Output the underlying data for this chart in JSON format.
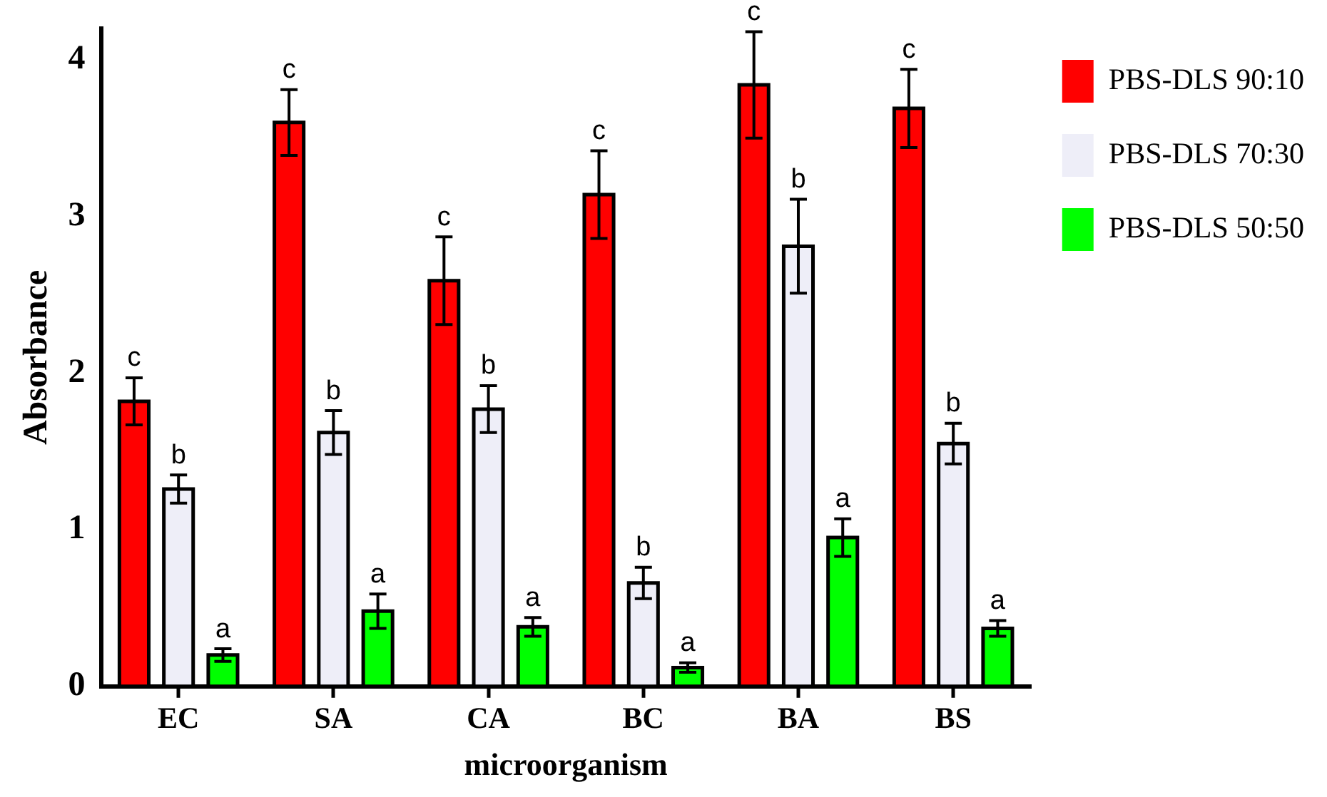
{
  "chart_data": {
    "type": "bar",
    "xlabel": "microorganism",
    "ylabel": "Absorbance",
    "categories": [
      "EC",
      "SA",
      "CA",
      "BC",
      "BA",
      "BS"
    ],
    "series": [
      {
        "name": "PBS-DLS 90:10",
        "color": "#ff0000",
        "values": [
          1.82,
          3.6,
          2.59,
          3.14,
          3.84,
          3.69
        ],
        "errors": [
          0.15,
          0.21,
          0.28,
          0.28,
          0.34,
          0.25
        ],
        "value_labels": [
          "c",
          "c",
          "c",
          "c",
          "c",
          "c"
        ]
      },
      {
        "name": "PBS-DLS 70:30",
        "color": "#eeeef8",
        "values": [
          1.26,
          1.62,
          1.77,
          0.66,
          2.81,
          1.55
        ],
        "errors": [
          0.09,
          0.14,
          0.15,
          0.1,
          0.3,
          0.13
        ],
        "value_labels": [
          "b",
          "b",
          "b",
          "b",
          "b",
          "b"
        ]
      },
      {
        "name": "PBS-DLS 50:50",
        "color": "#00ff00",
        "values": [
          0.2,
          0.48,
          0.38,
          0.12,
          0.95,
          0.37
        ],
        "errors": [
          0.04,
          0.11,
          0.06,
          0.03,
          0.12,
          0.05
        ],
        "value_labels": [
          "a",
          "a",
          "a",
          "a",
          "a",
          "a"
        ]
      }
    ],
    "ylim": [
      0,
      4.2
    ],
    "yticks": [
      0,
      1,
      2,
      3,
      4
    ],
    "grid": false,
    "legend": "top right"
  }
}
